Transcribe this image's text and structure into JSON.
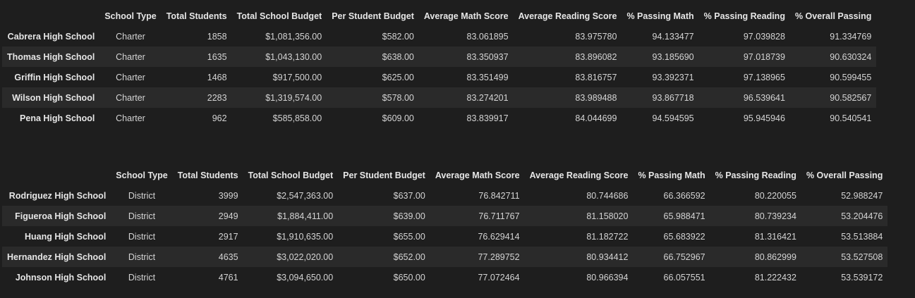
{
  "columns": [
    "",
    "School Type",
    "Total Students",
    "Total School Budget",
    "Per Student Budget",
    "Average Math Score",
    "Average Reading Score",
    "% Passing Math",
    "% Passing Reading",
    "% Overall Passing"
  ],
  "top_table": {
    "rows": [
      [
        "Cabrera High School",
        "Charter",
        "1858",
        "$1,081,356.00",
        "$582.00",
        "83.061895",
        "83.975780",
        "94.133477",
        "97.039828",
        "91.334769"
      ],
      [
        "Thomas High School",
        "Charter",
        "1635",
        "$1,043,130.00",
        "$638.00",
        "83.350937",
        "83.896082",
        "93.185690",
        "97.018739",
        "90.630324"
      ],
      [
        "Griffin High School",
        "Charter",
        "1468",
        "$917,500.00",
        "$625.00",
        "83.351499",
        "83.816757",
        "93.392371",
        "97.138965",
        "90.599455"
      ],
      [
        "Wilson High School",
        "Charter",
        "2283",
        "$1,319,574.00",
        "$578.00",
        "83.274201",
        "83.989488",
        "93.867718",
        "96.539641",
        "90.582567"
      ],
      [
        "Pena High School",
        "Charter",
        "962",
        "$585,858.00",
        "$609.00",
        "83.839917",
        "84.044699",
        "94.594595",
        "95.945946",
        "90.540541"
      ]
    ]
  },
  "bottom_table": {
    "rows": [
      [
        "Rodriguez High School",
        "District",
        "3999",
        "$2,547,363.00",
        "$637.00",
        "76.842711",
        "80.744686",
        "66.366592",
        "80.220055",
        "52.988247"
      ],
      [
        "Figueroa High School",
        "District",
        "2949",
        "$1,884,411.00",
        "$639.00",
        "76.711767",
        "81.158020",
        "65.988471",
        "80.739234",
        "53.204476"
      ],
      [
        "Huang High School",
        "District",
        "2917",
        "$1,910,635.00",
        "$655.00",
        "76.629414",
        "81.182722",
        "65.683922",
        "81.316421",
        "53.513884"
      ],
      [
        "Hernandez High School",
        "District",
        "4635",
        "$3,022,020.00",
        "$652.00",
        "77.289752",
        "80.934412",
        "66.752967",
        "80.862999",
        "53.527508"
      ],
      [
        "Johnson High School",
        "District",
        "4761",
        "$3,094,650.00",
        "$650.00",
        "77.072464",
        "80.966394",
        "66.057551",
        "81.222432",
        "53.539172"
      ]
    ]
  }
}
